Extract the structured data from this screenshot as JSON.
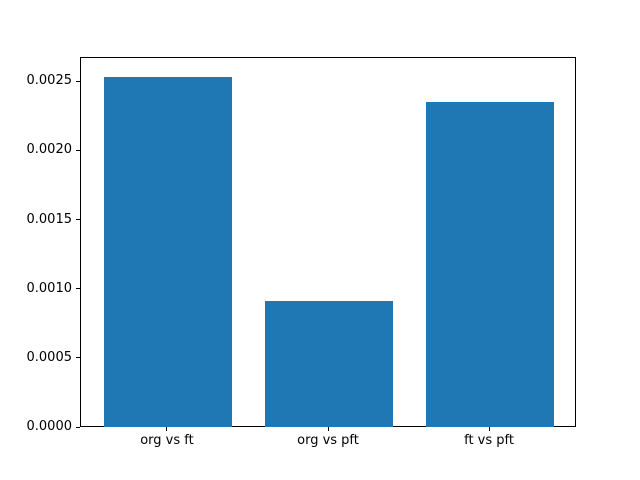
{
  "chart_data": {
    "type": "bar",
    "categories": [
      "org vs ft",
      "org vs pft",
      "ft vs pft"
    ],
    "values": [
      0.00254,
      0.00092,
      0.00236
    ],
    "title": "",
    "xlabel": "",
    "ylabel": "",
    "xlim": [
      -0.54,
      2.54
    ],
    "ylim": [
      0,
      0.002675
    ],
    "bar_width": 0.8,
    "yticks": [
      0.0,
      0.0005,
      0.001,
      0.0015,
      0.002,
      0.0025
    ],
    "ytick_labels": [
      "0.0000",
      "0.0005",
      "0.0010",
      "0.0015",
      "0.0020",
      "0.0025"
    ],
    "bar_color": "#1f77b4",
    "axis_color": "#000000",
    "background_color": "#ffffff",
    "grid": false,
    "legend": null
  }
}
